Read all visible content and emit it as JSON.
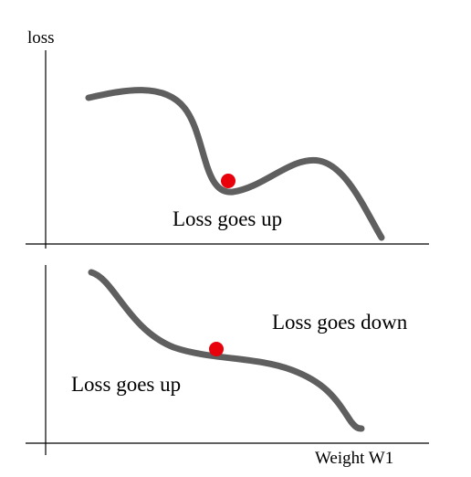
{
  "top_panel": {
    "y_axis_label": "loss",
    "annotation": "Loss goes up"
  },
  "bottom_panel": {
    "annotations": [
      "Loss goes down",
      "Loss goes up"
    ],
    "x_axis_label": "Weight W1"
  }
}
